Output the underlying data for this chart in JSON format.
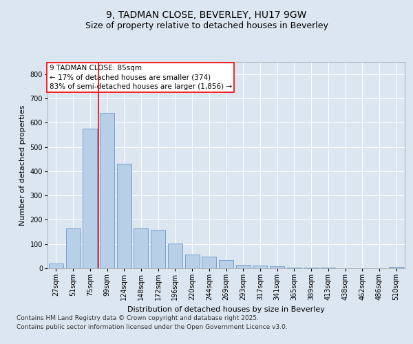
{
  "title1": "9, TADMAN CLOSE, BEVERLEY, HU17 9GW",
  "title2": "Size of property relative to detached houses in Beverley",
  "xlabel": "Distribution of detached houses by size in Beverley",
  "ylabel": "Number of detached properties",
  "categories": [
    "27sqm",
    "51sqm",
    "75sqm",
    "99sqm",
    "124sqm",
    "148sqm",
    "172sqm",
    "196sqm",
    "220sqm",
    "244sqm",
    "269sqm",
    "293sqm",
    "317sqm",
    "341sqm",
    "365sqm",
    "389sqm",
    "413sqm",
    "438sqm",
    "462sqm",
    "486sqm",
    "510sqm"
  ],
  "values": [
    20,
    165,
    575,
    640,
    430,
    165,
    160,
    103,
    57,
    47,
    35,
    15,
    11,
    8,
    4,
    4,
    3,
    1,
    1,
    0,
    7
  ],
  "bar_color": "#b8cfe8",
  "bar_edge_color": "#6699cc",
  "vline_x": 2.5,
  "vline_color": "red",
  "annotation_title": "9 TADMAN CLOSE: 85sqm",
  "annotation_line1": "← 17% of detached houses are smaller (374)",
  "annotation_line2": "83% of semi-detached houses are larger (1,856) →",
  "annotation_box_color": "white",
  "annotation_box_edge": "red",
  "ylim": [
    0,
    850
  ],
  "yticks": [
    0,
    100,
    200,
    300,
    400,
    500,
    600,
    700,
    800
  ],
  "background_color": "#dce6f0",
  "plot_bg_color": "#dce6f0",
  "footer1": "Contains HM Land Registry data © Crown copyright and database right 2025.",
  "footer2": "Contains public sector information licensed under the Open Government Licence v3.0.",
  "title_fontsize": 10,
  "subtitle_fontsize": 9,
  "axis_label_fontsize": 8,
  "tick_fontsize": 7,
  "annotation_fontsize": 7.5
}
